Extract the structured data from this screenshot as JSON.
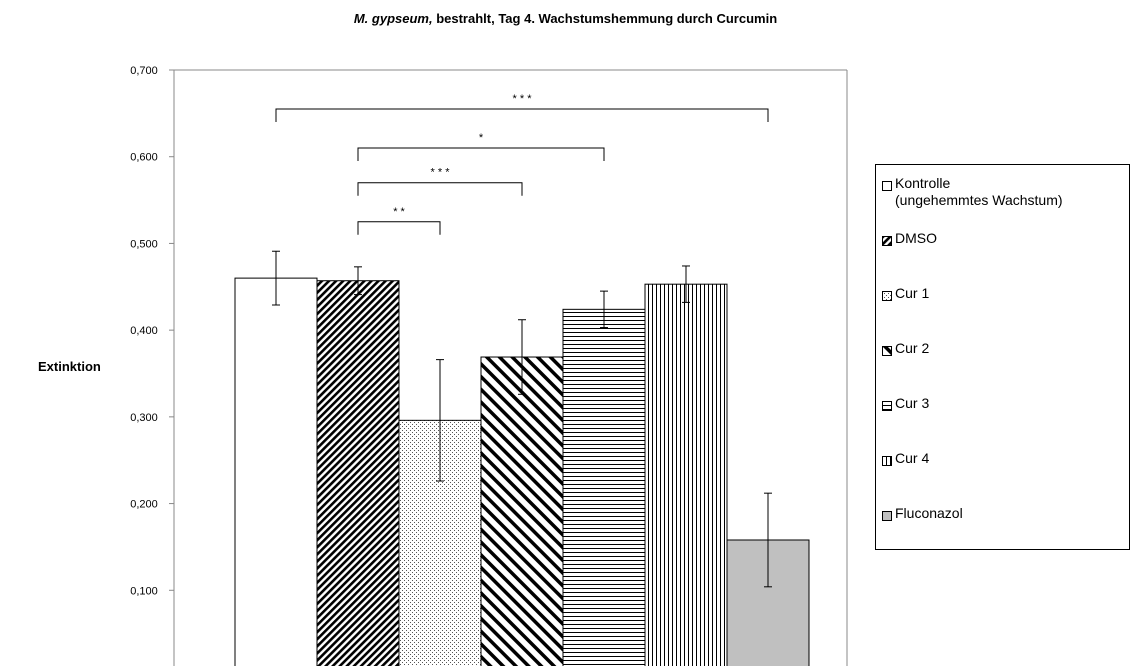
{
  "title": {
    "species": "M. gypseum,",
    "text": " bestrahlt, Tag 4. Wachstumshemmung durch Curcumin"
  },
  "chart_data": {
    "type": "bar",
    "title": "M. gypseum, bestrahlt, Tag 4. Wachstumshemmung durch Curcumin",
    "xlabel": "",
    "ylabel": "Extinktion",
    "ylim": [
      0,
      0.7
    ],
    "yticks": [
      "0,100",
      "0,200",
      "0,300",
      "0,400",
      "0,500",
      "0,600",
      "0,700"
    ],
    "grid": false,
    "legend_position": "right",
    "categories": [
      "Kontrolle (ungehemmtes Wachstum)",
      "DMSO",
      "Cur 1",
      "Cur 2",
      "Cur 3",
      "Cur 4",
      "Fluconazol"
    ],
    "series": [
      {
        "category": "Kontrolle (ungehemmtes Wachstum)",
        "value": 0.46,
        "error": 0.031,
        "pattern": "white"
      },
      {
        "category": "DMSO",
        "value": 0.457,
        "error": 0.016,
        "pattern": "dense-diagonal-down"
      },
      {
        "category": "Cur 1",
        "value": 0.296,
        "error": 0.07,
        "pattern": "dots"
      },
      {
        "category": "Cur 2",
        "value": 0.369,
        "error": 0.043,
        "pattern": "wide-diagonal-up"
      },
      {
        "category": "Cur 3",
        "value": 0.424,
        "error": 0.021,
        "pattern": "horizontal-lines"
      },
      {
        "category": "Cur 4",
        "value": 0.453,
        "error": 0.021,
        "pattern": "vertical-lines"
      },
      {
        "category": "Fluconazol",
        "value": 0.158,
        "error": 0.054,
        "pattern": "gray"
      }
    ],
    "annotations": [
      {
        "from": 0,
        "to": 6,
        "y": 0.655,
        "label": "* * *"
      },
      {
        "from": 1,
        "to": 4,
        "y": 0.61,
        "label": "*"
      },
      {
        "from": 1,
        "to": 3,
        "y": 0.57,
        "label": "* * *"
      },
      {
        "from": 1,
        "to": 2,
        "y": 0.525,
        "label": "* *"
      }
    ]
  },
  "legend": {
    "items": [
      {
        "label": "Kontrolle",
        "label2": "(ungehemmtes Wachstum)"
      },
      {
        "label": "DMSO"
      },
      {
        "label": "Cur 1"
      },
      {
        "label": "Cur 2"
      },
      {
        "label": "Cur 3"
      },
      {
        "label": "Cur 4"
      },
      {
        "label": "Fluconazol"
      }
    ]
  }
}
